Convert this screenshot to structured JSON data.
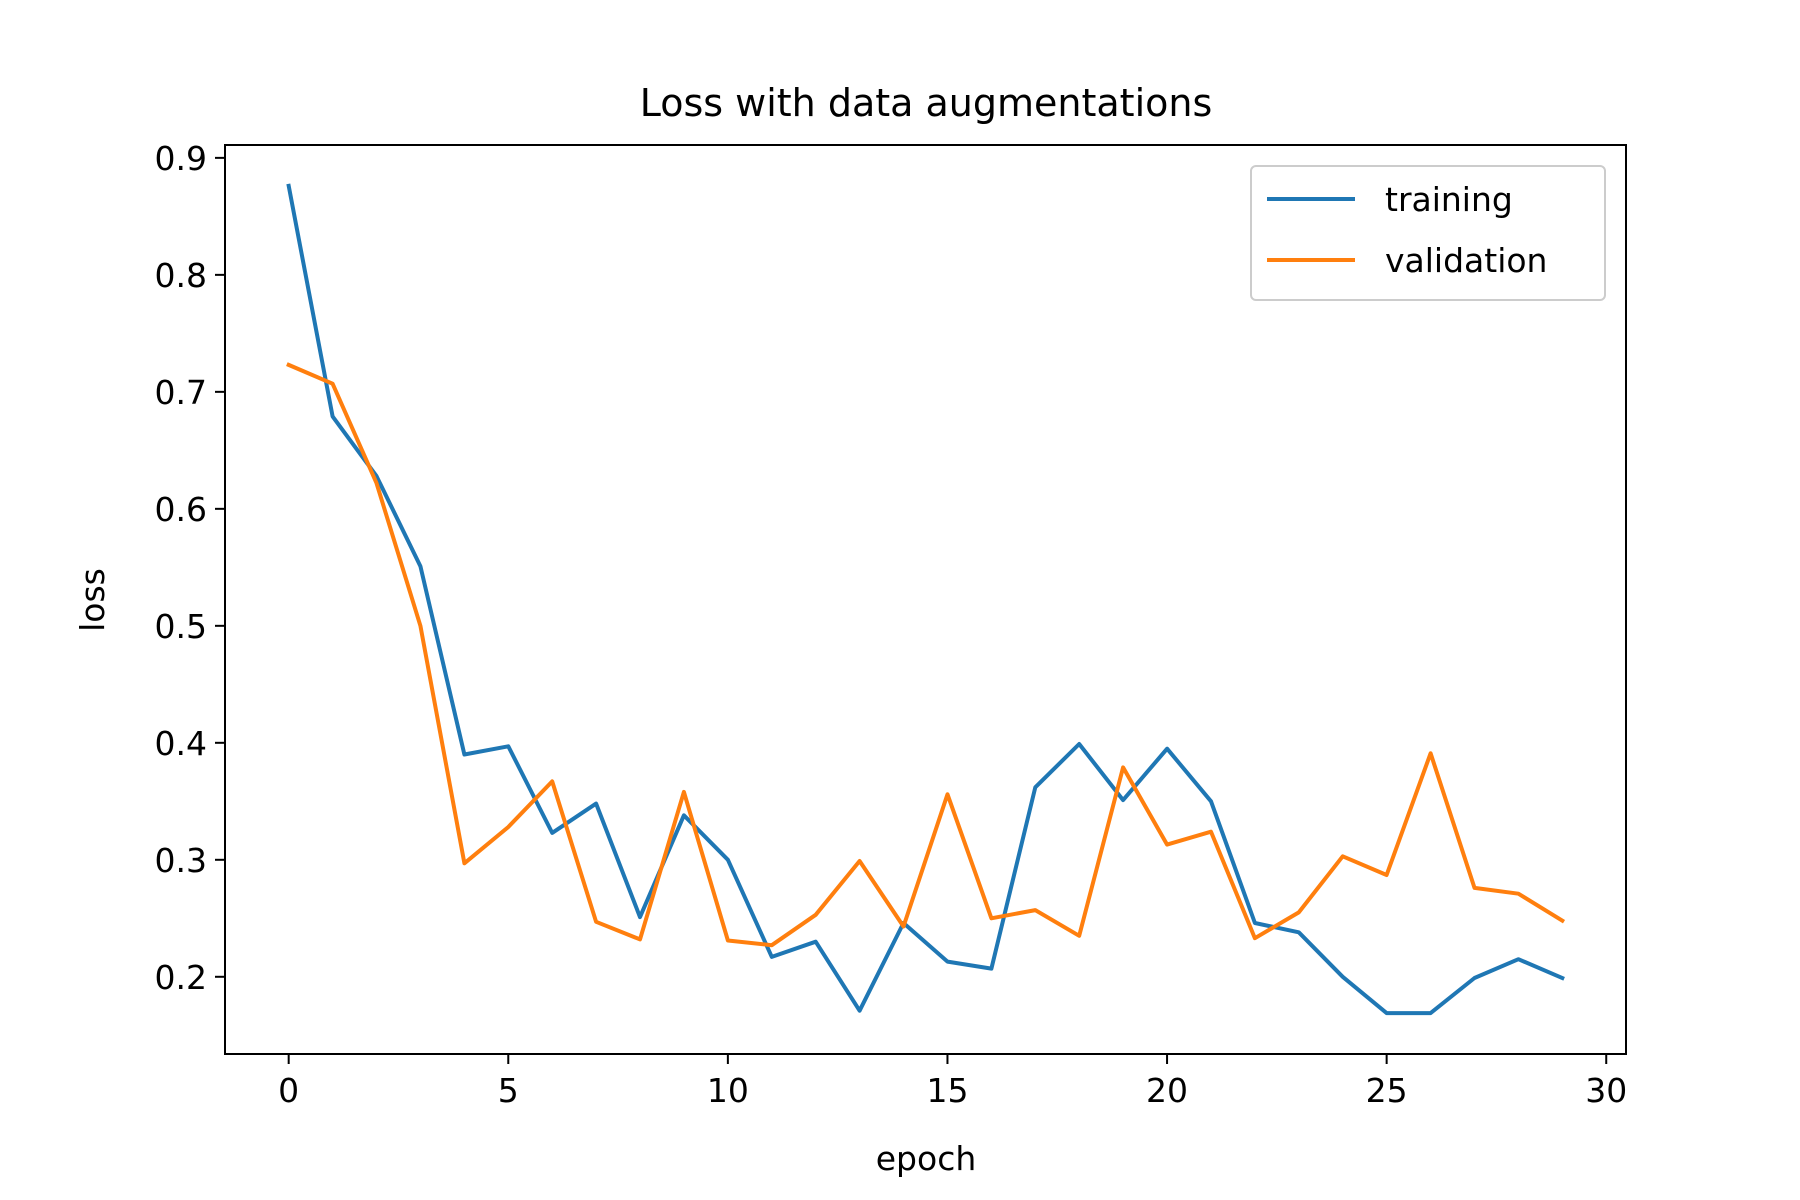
{
  "chart_data": {
    "type": "line",
    "title": "Loss with data augmentations",
    "xlabel": "epoch",
    "ylabel": "loss",
    "xlim": [
      -1.45,
      30.45
    ],
    "ylim": [
      0.134,
      0.911
    ],
    "xticks": [
      0,
      5,
      10,
      15,
      20,
      25,
      30
    ],
    "yticks": [
      0.2,
      0.3,
      0.4,
      0.5,
      0.6,
      0.7,
      0.8,
      0.9
    ],
    "grid": false,
    "legend_position": "upper right",
    "x": [
      0,
      1,
      2,
      3,
      4,
      5,
      6,
      7,
      8,
      9,
      10,
      11,
      12,
      13,
      14,
      15,
      16,
      17,
      18,
      19,
      20,
      21,
      22,
      23,
      24,
      25,
      26,
      27,
      28,
      29
    ],
    "series": [
      {
        "name": "training",
        "color": "#1f77b4",
        "values": [
          0.876,
          0.679,
          0.628,
          0.551,
          0.39,
          0.397,
          0.323,
          0.348,
          0.251,
          0.338,
          0.3,
          0.217,
          0.23,
          0.171,
          0.246,
          0.213,
          0.207,
          0.362,
          0.399,
          0.351,
          0.395,
          0.35,
          0.246,
          0.238,
          0.2,
          0.169,
          0.169,
          0.199,
          0.215,
          0.199
        ]
      },
      {
        "name": "validation",
        "color": "#ff7f0e",
        "values": [
          0.723,
          0.707,
          0.622,
          0.5,
          0.297,
          0.328,
          0.367,
          0.247,
          0.232,
          0.358,
          0.231,
          0.227,
          0.253,
          0.299,
          0.243,
          0.356,
          0.25,
          0.257,
          0.235,
          0.379,
          0.313,
          0.324,
          0.233,
          0.255,
          0.303,
          0.287,
          0.391,
          0.276,
          0.271,
          0.248
        ]
      }
    ]
  }
}
